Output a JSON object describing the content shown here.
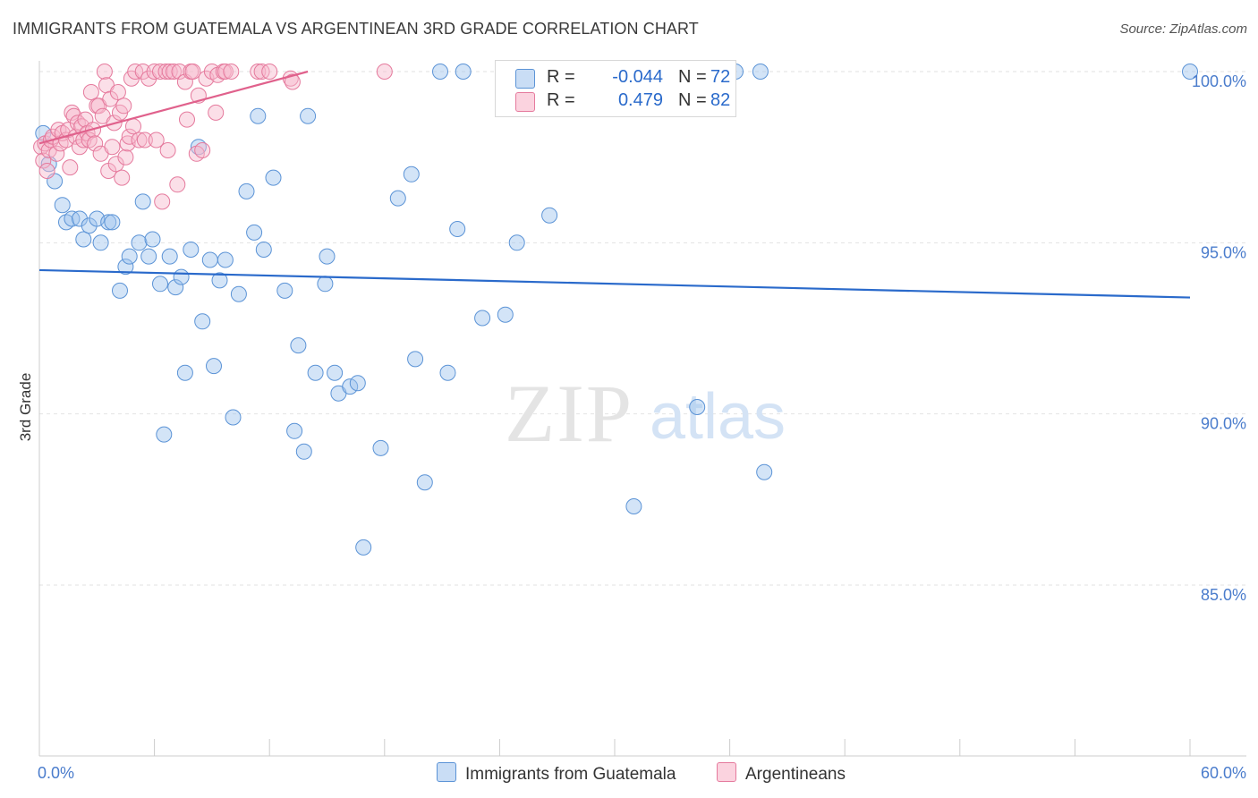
{
  "title": "IMMIGRANTS FROM GUATEMALA VS ARGENTINEAN 3RD GRADE CORRELATION CHART",
  "source": "Source: ZipAtlas.com",
  "watermark": {
    "zip": "ZIP",
    "atlas": "atlas"
  },
  "legend": {
    "r_label": "R =",
    "n_label": "N =",
    "rows": [
      {
        "r": "-0.044",
        "n": "72",
        "color": "#9dc3ee",
        "stroke": "#5b93d6"
      },
      {
        "r": "0.479",
        "n": "82",
        "color": "#f7b8cb",
        "stroke": "#e57a9d"
      }
    ]
  },
  "chart_data": {
    "type": "scatter",
    "title": "IMMIGRANTS FROM GUATEMALA VS ARGENTINEAN 3RD GRADE CORRELATION CHART",
    "xlabel": "",
    "ylabel": "3rd Grade",
    "xlim": [
      0,
      60
    ],
    "ylim": [
      80,
      100.8
    ],
    "x_tick_labels": [
      "0.0%",
      "60.0%"
    ],
    "y_ticks": [
      85,
      90,
      95,
      100
    ],
    "y_tick_labels": [
      "85.0%",
      "90.0%",
      "95.0%",
      "100.0%"
    ],
    "grid": true,
    "series": [
      {
        "name": "Immigrants from Guatemala",
        "color": "#9dc3ee",
        "stroke": "#5b93d6",
        "trend": {
          "x": [
            0,
            60
          ],
          "y": [
            94.2,
            93.4
          ],
          "color": "#2a6acb"
        },
        "points": [
          [
            0.2,
            98.2
          ],
          [
            0.5,
            97.3
          ],
          [
            0.8,
            96.8
          ],
          [
            1.2,
            96.1
          ],
          [
            1.4,
            95.6
          ],
          [
            1.7,
            95.7
          ],
          [
            2.1,
            95.7
          ],
          [
            2.3,
            95.1
          ],
          [
            2.6,
            95.5
          ],
          [
            3.0,
            95.7
          ],
          [
            3.2,
            95.0
          ],
          [
            3.6,
            95.6
          ],
          [
            3.8,
            95.6
          ],
          [
            4.2,
            93.6
          ],
          [
            4.5,
            94.3
          ],
          [
            4.7,
            94.6
          ],
          [
            5.2,
            95.0
          ],
          [
            5.4,
            96.2
          ],
          [
            5.7,
            94.6
          ],
          [
            5.9,
            95.1
          ],
          [
            6.3,
            93.8
          ],
          [
            6.5,
            89.4
          ],
          [
            6.8,
            94.6
          ],
          [
            7.1,
            93.7
          ],
          [
            7.4,
            94.0
          ],
          [
            7.6,
            91.2
          ],
          [
            7.9,
            94.8
          ],
          [
            8.3,
            97.8
          ],
          [
            8.5,
            92.7
          ],
          [
            8.9,
            94.5
          ],
          [
            9.1,
            91.4
          ],
          [
            9.4,
            93.9
          ],
          [
            9.7,
            94.5
          ],
          [
            10.1,
            89.9
          ],
          [
            10.4,
            93.5
          ],
          [
            10.8,
            96.5
          ],
          [
            11.2,
            95.3
          ],
          [
            11.4,
            98.7
          ],
          [
            11.7,
            94.8
          ],
          [
            12.2,
            96.9
          ],
          [
            12.8,
            93.6
          ],
          [
            13.3,
            89.5
          ],
          [
            13.5,
            92.0
          ],
          [
            13.8,
            88.9
          ],
          [
            14.0,
            98.7
          ],
          [
            14.4,
            91.2
          ],
          [
            14.9,
            93.8
          ],
          [
            15.0,
            94.6
          ],
          [
            15.4,
            91.2
          ],
          [
            15.6,
            90.6
          ],
          [
            16.2,
            90.8
          ],
          [
            16.6,
            90.9
          ],
          [
            16.9,
            86.1
          ],
          [
            17.8,
            89.0
          ],
          [
            18.7,
            96.3
          ],
          [
            19.4,
            97.0
          ],
          [
            19.6,
            91.6
          ],
          [
            20.1,
            88.0
          ],
          [
            20.9,
            100.0
          ],
          [
            21.3,
            91.2
          ],
          [
            21.8,
            95.4
          ],
          [
            22.1,
            100.0
          ],
          [
            23.1,
            92.8
          ],
          [
            24.3,
            92.9
          ],
          [
            24.9,
            95.0
          ],
          [
            26.6,
            95.8
          ],
          [
            31.0,
            87.3
          ],
          [
            34.3,
            90.2
          ],
          [
            36.3,
            100.0
          ],
          [
            37.6,
            100.0
          ],
          [
            37.8,
            88.3
          ],
          [
            60.0,
            100.0
          ]
        ]
      },
      {
        "name": "Argentineans",
        "color": "#f7b8cb",
        "stroke": "#e57a9d",
        "trend": {
          "x": [
            0,
            14
          ],
          "y": [
            97.9,
            100.0
          ],
          "color": "#e0618c"
        },
        "points": [
          [
            0.1,
            97.8
          ],
          [
            0.2,
            97.4
          ],
          [
            0.3,
            97.9
          ],
          [
            0.4,
            97.1
          ],
          [
            0.5,
            97.7
          ],
          [
            0.6,
            98.0
          ],
          [
            0.7,
            98.1
          ],
          [
            0.9,
            97.6
          ],
          [
            1.0,
            98.3
          ],
          [
            1.1,
            97.9
          ],
          [
            1.2,
            98.2
          ],
          [
            1.4,
            98.0
          ],
          [
            1.5,
            98.3
          ],
          [
            1.6,
            97.2
          ],
          [
            1.7,
            98.8
          ],
          [
            1.8,
            98.7
          ],
          [
            1.9,
            98.1
          ],
          [
            2.0,
            98.5
          ],
          [
            2.1,
            97.8
          ],
          [
            2.2,
            98.4
          ],
          [
            2.3,
            98.0
          ],
          [
            2.4,
            98.6
          ],
          [
            2.5,
            98.2
          ],
          [
            2.6,
            98.0
          ],
          [
            2.7,
            99.4
          ],
          [
            2.8,
            98.3
          ],
          [
            2.9,
            97.9
          ],
          [
            3.0,
            99.0
          ],
          [
            3.1,
            99.0
          ],
          [
            3.2,
            97.6
          ],
          [
            3.3,
            98.7
          ],
          [
            3.4,
            100.0
          ],
          [
            3.5,
            99.6
          ],
          [
            3.6,
            97.1
          ],
          [
            3.7,
            99.2
          ],
          [
            3.8,
            97.8
          ],
          [
            3.9,
            98.5
          ],
          [
            4.0,
            97.3
          ],
          [
            4.1,
            99.4
          ],
          [
            4.2,
            98.8
          ],
          [
            4.3,
            96.9
          ],
          [
            4.4,
            99.0
          ],
          [
            4.5,
            97.5
          ],
          [
            4.6,
            97.9
          ],
          [
            4.7,
            98.1
          ],
          [
            4.8,
            99.8
          ],
          [
            4.9,
            98.4
          ],
          [
            5.0,
            100.0
          ],
          [
            5.2,
            98.0
          ],
          [
            5.4,
            100.0
          ],
          [
            5.5,
            98.0
          ],
          [
            5.7,
            99.8
          ],
          [
            6.0,
            100.0
          ],
          [
            6.1,
            98.0
          ],
          [
            6.3,
            100.0
          ],
          [
            6.4,
            96.2
          ],
          [
            6.6,
            100.0
          ],
          [
            6.7,
            97.7
          ],
          [
            6.8,
            100.0
          ],
          [
            7.0,
            100.0
          ],
          [
            7.2,
            96.7
          ],
          [
            7.3,
            100.0
          ],
          [
            7.6,
            99.7
          ],
          [
            7.7,
            98.6
          ],
          [
            7.9,
            100.0
          ],
          [
            8.0,
            100.0
          ],
          [
            8.2,
            97.6
          ],
          [
            8.3,
            99.3
          ],
          [
            8.5,
            97.7
          ],
          [
            8.7,
            99.8
          ],
          [
            9.0,
            100.0
          ],
          [
            9.2,
            98.8
          ],
          [
            9.3,
            99.9
          ],
          [
            9.6,
            100.0
          ],
          [
            9.7,
            100.0
          ],
          [
            10.0,
            100.0
          ],
          [
            11.4,
            100.0
          ],
          [
            11.6,
            100.0
          ],
          [
            12.0,
            100.0
          ],
          [
            13.1,
            99.8
          ],
          [
            13.2,
            99.7
          ],
          [
            18.0,
            100.0
          ]
        ]
      }
    ]
  },
  "bottom_legend": [
    "Immigrants from Guatemala",
    "Argentineans"
  ]
}
